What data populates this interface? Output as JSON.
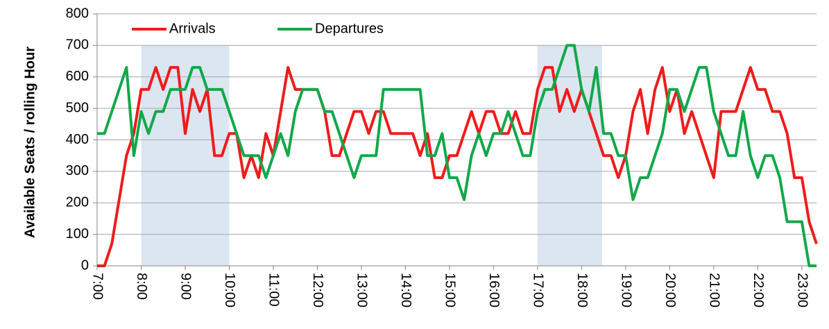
{
  "chart_data": {
    "type": "line",
    "y_label": "Available Seats / rolling Hour",
    "x": [
      420,
      430,
      440,
      450,
      460,
      470,
      480,
      490,
      500,
      510,
      520,
      530,
      540,
      550,
      560,
      570,
      580,
      590,
      600,
      610,
      620,
      630,
      640,
      650,
      660,
      670,
      680,
      690,
      700,
      710,
      720,
      730,
      740,
      750,
      760,
      770,
      780,
      790,
      800,
      810,
      820,
      830,
      840,
      850,
      860,
      870,
      880,
      890,
      900,
      910,
      920,
      930,
      940,
      950,
      960,
      970,
      980,
      990,
      1000,
      1010,
      1020,
      1030,
      1040,
      1050,
      1060,
      1070,
      1080,
      1090,
      1100,
      1110,
      1120,
      1130,
      1140,
      1150,
      1160,
      1170,
      1180,
      1190,
      1200,
      1210,
      1220,
      1230,
      1240,
      1250,
      1260,
      1270,
      1280,
      1290,
      1300,
      1310,
      1320,
      1330,
      1340,
      1350,
      1360,
      1370,
      1380,
      1390,
      1400
    ],
    "series": [
      {
        "name": "Arrivals",
        "color": "#ee1c1c",
        "values": [
          0,
          0,
          70,
          210,
          350,
          420,
          560,
          560,
          630,
          560,
          630,
          630,
          420,
          560,
          490,
          560,
          350,
          350,
          420,
          420,
          280,
          350,
          280,
          420,
          350,
          490,
          630,
          560,
          560,
          560,
          560,
          490,
          350,
          350,
          420,
          490,
          490,
          420,
          490,
          490,
          420,
          420,
          420,
          420,
          350,
          420,
          280,
          280,
          350,
          350,
          420,
          490,
          420,
          490,
          490,
          420,
          420,
          490,
          420,
          420,
          560,
          630,
          630,
          490,
          560,
          490,
          560,
          490,
          420,
          350,
          350,
          280,
          350,
          490,
          560,
          420,
          560,
          630,
          490,
          560,
          420,
          490,
          420,
          350,
          280,
          490,
          490,
          490,
          560,
          630,
          560,
          560,
          490,
          490,
          420,
          280,
          280,
          140,
          70
        ]
      },
      {
        "name": "Departures",
        "color": "#12a84a",
        "values": [
          420,
          420,
          490,
          560,
          630,
          350,
          490,
          420,
          490,
          490,
          560,
          560,
          560,
          630,
          630,
          560,
          560,
          560,
          490,
          420,
          350,
          350,
          350,
          280,
          350,
          420,
          350,
          490,
          560,
          560,
          560,
          490,
          490,
          420,
          350,
          280,
          350,
          350,
          350,
          560,
          560,
          560,
          560,
          560,
          560,
          350,
          350,
          420,
          280,
          280,
          210,
          350,
          420,
          350,
          420,
          420,
          490,
          420,
          350,
          350,
          490,
          560,
          560,
          630,
          700,
          700,
          560,
          490,
          630,
          420,
          420,
          350,
          350,
          210,
          280,
          280,
          350,
          420,
          560,
          560,
          490,
          560,
          630,
          630,
          490,
          420,
          350,
          350,
          490,
          350,
          280,
          350,
          350,
          280,
          140,
          140,
          140,
          0,
          0
        ]
      }
    ],
    "shaded_ranges": [
      {
        "start": 480,
        "end": 600,
        "top": 700
      },
      {
        "start": 1020,
        "end": 1108,
        "top": 700
      }
    ],
    "shade_color": "#dce6f1",
    "xlim": [
      420,
      1400
    ],
    "xticks": [
      {
        "value": 420,
        "label": "7:00"
      },
      {
        "value": 480,
        "label": "8:00"
      },
      {
        "value": 540,
        "label": "9:00"
      },
      {
        "value": 600,
        "label": "10:00"
      },
      {
        "value": 660,
        "label": "11:00"
      },
      {
        "value": 720,
        "label": "12:00"
      },
      {
        "value": 780,
        "label": "13:00"
      },
      {
        "value": 840,
        "label": "14:00"
      },
      {
        "value": 900,
        "label": "15:00"
      },
      {
        "value": 960,
        "label": "16:00"
      },
      {
        "value": 1020,
        "label": "17:00"
      },
      {
        "value": 1080,
        "label": "18:00"
      },
      {
        "value": 1140,
        "label": "19:00"
      },
      {
        "value": 1200,
        "label": "20:00"
      },
      {
        "value": 1260,
        "label": "21:00"
      },
      {
        "value": 1320,
        "label": "22:00"
      },
      {
        "value": 1380,
        "label": "23:00"
      }
    ],
    "ylim": [
      0,
      800
    ],
    "yticks": [
      0,
      100,
      200,
      300,
      400,
      500,
      600,
      700,
      800
    ],
    "grid": true,
    "legend": "top-left"
  }
}
